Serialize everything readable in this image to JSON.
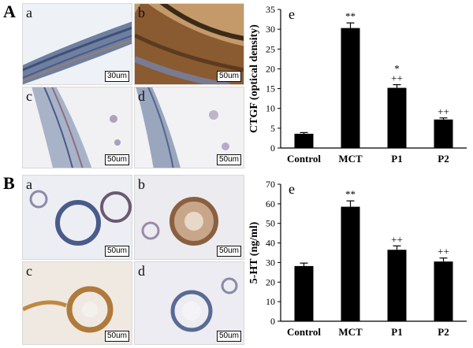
{
  "panels": [
    {
      "letter": "A",
      "images": [
        {
          "label": "a",
          "scale": "30um"
        },
        {
          "label": "b",
          "scale": "50um"
        },
        {
          "label": "c",
          "scale": "50um"
        },
        {
          "label": "d",
          "scale": "50um"
        }
      ]
    },
    {
      "letter": "B",
      "images": [
        {
          "label": "a",
          "scale": "50um"
        },
        {
          "label": "b",
          "scale": "50um"
        },
        {
          "label": "c",
          "scale": "50um"
        },
        {
          "label": "d",
          "scale": "50um"
        }
      ]
    }
  ],
  "chart_data": [
    {
      "type": "bar",
      "panel_label": "e",
      "ylabel": "CTGF (optical density)",
      "categories": [
        "Control",
        "MCT",
        "P1",
        "P2"
      ],
      "values": [
        3.6,
        30.3,
        15.2,
        7.2
      ],
      "errors": [
        0.3,
        1.3,
        0.8,
        0.4
      ],
      "annotations": [
        "",
        "**",
        "*\n++",
        "++"
      ],
      "ylim": [
        0,
        35
      ],
      "yticks": [
        0,
        5,
        10,
        15,
        20,
        25,
        30,
        35
      ],
      "grid": false,
      "bar_color": "#000000"
    },
    {
      "type": "bar",
      "panel_label": "e",
      "ylabel": "5-HT (ng/ml)",
      "categories": [
        "Control",
        "MCT",
        "P1",
        "P2"
      ],
      "values": [
        28.2,
        58.5,
        36.5,
        30.5
      ],
      "errors": [
        1.5,
        3.0,
        2.0,
        1.8
      ],
      "annotations": [
        "",
        "**",
        "++",
        "++"
      ],
      "ylim": [
        0,
        70
      ],
      "yticks": [
        0,
        10,
        20,
        30,
        40,
        50,
        60,
        70
      ],
      "grid": false,
      "bar_color": "#000000"
    }
  ]
}
